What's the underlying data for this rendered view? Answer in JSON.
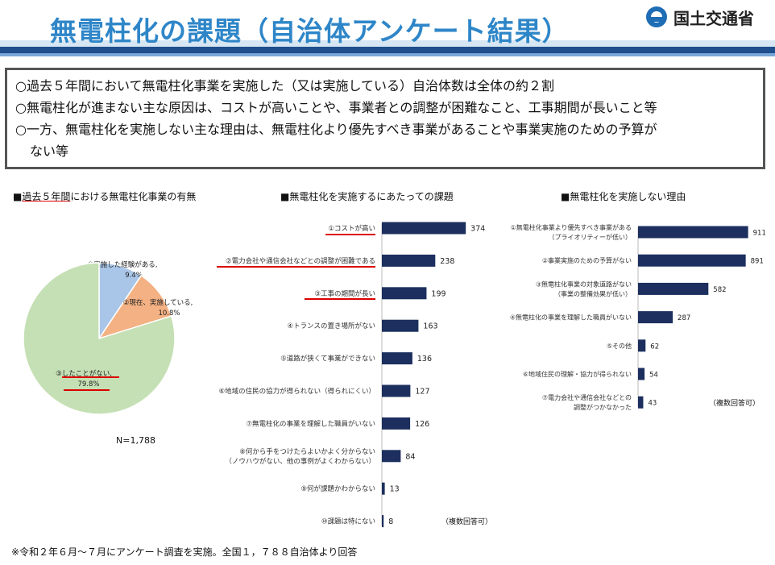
{
  "header": {
    "title": "無電柱化の課題（自治体アンケート結果）",
    "ministry": "国土交通省"
  },
  "summary": [
    "○過去５年間において無電柱化事業を実施した（又は実施している）自治体数は全体の約２割",
    "○無電柱化が進まない主な原因は、コストが高いことや、事業者との調整が困難なこと、工事期間が長いこと等",
    "○一方、無電柱化を実施しない主な理由は、無電柱化より優先すべき事業があることや事業実施のための予算が",
    "ない等"
  ],
  "sections": {
    "pie_title_prefix": "■",
    "pie_title_ul": "過去５年間",
    "pie_title_rest": "における無電柱化事業の有無",
    "bar1_title": "■無電柱化を実施するにあたっての課題",
    "bar2_title": "■無電柱化を実施しない理由"
  },
  "pie_note": "N=1,788",
  "multi_answer": "（複数回答可）",
  "footnote": "※令和２年６月～７月にアンケート調査を実施。全国１，７８８自治体より回答",
  "colors": {
    "title_blue": "#2e86c8",
    "bar_navy": "#1c2f5e",
    "pie_blue": "#a9c6e8",
    "pie_orange": "#f4b183",
    "pie_green": "#c5e0b4",
    "highlight_red": "#dd0000"
  },
  "chart_data": [
    {
      "type": "pie",
      "title": "過去５年間における無電柱化事業の有無",
      "slices": [
        {
          "label_lines": [
            "①実施した経験がある,",
            "9.4%"
          ],
          "value": 9.4
        },
        {
          "label_lines": [
            "②現在、実施している,",
            "10.8%"
          ],
          "value": 10.8
        },
        {
          "label_lines": [
            "③したことがない,",
            "79.8%"
          ],
          "value": 79.8
        }
      ]
    },
    {
      "type": "bar",
      "orientation": "horizontal",
      "title": "無電柱化を実施するにあたっての課題",
      "categories": [
        [
          "①コストが高い"
        ],
        [
          "②電力会社や通信会社などとの調整が困難である"
        ],
        [
          "③工事の期間が長い"
        ],
        [
          "④トランスの置き場所がない"
        ],
        [
          "⑤道路が狭くて事業ができない"
        ],
        [
          "⑥地域の住民の協力が得られない（得られにくい）"
        ],
        [
          "⑦無電柱化の事業を理解した職員がいない"
        ],
        [
          "⑧何から手をつけたらよいかよく分からない",
          "（ノウハウがない、他の事例がよくわからない）"
        ],
        [
          "⑨何が課題かわからない"
        ],
        [
          "⑩課題は特にない"
        ]
      ],
      "values": [
        374,
        238,
        199,
        163,
        136,
        127,
        126,
        84,
        13,
        8
      ],
      "xlim": [
        0,
        420
      ]
    },
    {
      "type": "bar",
      "orientation": "horizontal",
      "title": "無電柱化を実施しない理由",
      "categories": [
        [
          "①無電柱化事業より優先すべき事業がある",
          "（プライオリティーが低い）"
        ],
        [
          "②事業実施のための予算がない"
        ],
        [
          "③無電柱化事業の対象道路がない",
          "（事業の整備効果が低い）"
        ],
        [
          "④無電柱化の事業を理解した職員がいない"
        ],
        [
          "⑤その他"
        ],
        [
          "⑥地域住民の理解・協力が得られない"
        ],
        [
          "⑦電力会社や通信会社などとの",
          "調整がつかなかった"
        ]
      ],
      "values": [
        911,
        891,
        582,
        287,
        62,
        54,
        43
      ],
      "xlim": [
        0,
        1000
      ]
    }
  ]
}
